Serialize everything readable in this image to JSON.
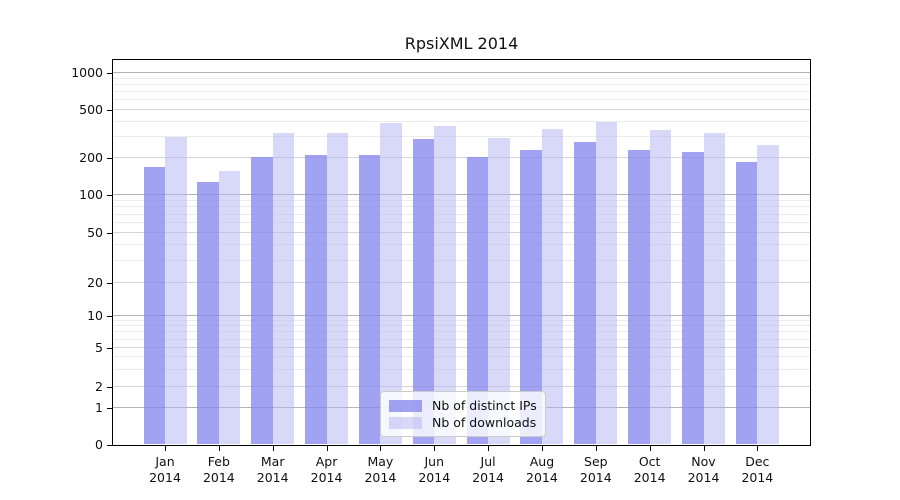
{
  "figure": {
    "background": "#ffffff",
    "axis_color": "#000000",
    "gridline_decade_color": "#b3b3b3",
    "gridline_labeled_color": "#d6d6d6",
    "gridline_minor_color": "#ececec"
  },
  "chart_data": {
    "type": "bar",
    "title": "RpsiXML 2014",
    "categories": [
      "Jan 2014",
      "Feb 2014",
      "Mar 2014",
      "Apr 2014",
      "May 2014",
      "Jun 2014",
      "Jul 2014",
      "Aug 2014",
      "Sep 2014",
      "Oct 2014",
      "Nov 2014",
      "Dec 2014"
    ],
    "series": [
      {
        "name": "Nb of distinct IPs",
        "color": "rgba(136,136,238,0.78)",
        "values": [
          168,
          127,
          203,
          213,
          210,
          286,
          205,
          234,
          269,
          235,
          226,
          184
        ]
      },
      {
        "name": "Nb of downloads",
        "color": "rgba(177,177,241,0.5)",
        "values": [
          300,
          158,
          320,
          325,
          392,
          366,
          292,
          350,
          397,
          340,
          320,
          255
        ]
      }
    ],
    "yticks": [
      0,
      1,
      2,
      5,
      10,
      20,
      50,
      100,
      200,
      500,
      1000
    ],
    "ylim": [
      0,
      1000
    ],
    "yscale": "log-above-1",
    "grid": "horizontal",
    "legend_position": "lower center",
    "xlabel": "",
    "ylabel": ""
  }
}
